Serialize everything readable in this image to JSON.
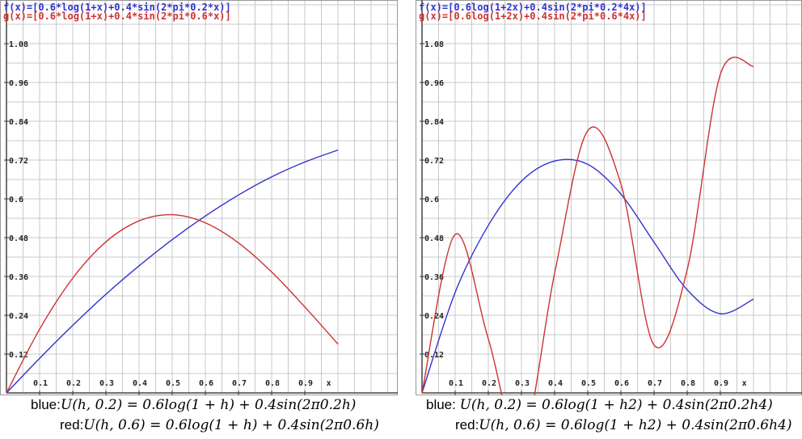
{
  "colors": {
    "blue": "#3333cc",
    "red": "#cc3333",
    "grid": "#c8c8c8",
    "axis": "#444444"
  },
  "chart_data": [
    {
      "type": "line",
      "title_lines": [
        "f(x)=[0.6*log(1+x)+0.4*sin(2*pi*0.2*x)]",
        "g(x)=[0.6*log(1+x)+0.4*sin(2*pi*0.6*x)]"
      ],
      "xlim": [
        0,
        1.0
      ],
      "ylim": [
        0,
        1.14
      ],
      "x_ticks": [
        "0.1",
        "0.2",
        "0.3",
        "0.4",
        "0.5",
        "0.6",
        "0.7",
        "0.8",
        "0.9"
      ],
      "y_ticks": [
        "1.08",
        "0.96",
        "0.84",
        "0.72",
        "0.6",
        "0.48",
        "0.36",
        "0.24",
        "0.12"
      ],
      "x_end_label": "x",
      "series": [
        {
          "color": "blue",
          "x": [
            0,
            0.1,
            0.2,
            0.3,
            0.4,
            0.5,
            0.6,
            0.7,
            0.8,
            0.9,
            1.0
          ],
          "y": [
            0,
            0.107,
            0.209,
            0.305,
            0.393,
            0.474,
            0.547,
            0.612,
            0.668,
            0.714,
            0.751
          ]
        },
        {
          "color": "red",
          "x": [
            0,
            0.1,
            0.2,
            0.3,
            0.4,
            0.5,
            0.6,
            0.7,
            0.8,
            0.9,
            1.0
          ],
          "y": [
            0,
            0.197,
            0.355,
            0.467,
            0.532,
            0.551,
            0.526,
            0.464,
            0.374,
            0.266,
            0.151
          ]
        }
      ],
      "caption": [
        {
          "label": "blue:",
          "formula": "U(h, 0.2) = 0.6log(1 + h) + 0.4sin(2π0.2h)"
        },
        {
          "label": "red:",
          "formula": "U(h, 0.6) = 0.6log(1 + h) + 0.4sin(2π0.6h)"
        }
      ]
    },
    {
      "type": "line",
      "title_lines": [
        "f(x)=[0.6log(1+2x)+0.4sin(2*pi*0.2*4x)]",
        "g(x)=[0.6log(1+2x)+0.4sin(2*pi*0.6*4x)]"
      ],
      "xlim": [
        0,
        1.0
      ],
      "ylim": [
        0,
        1.14
      ],
      "x_ticks": [
        "0.1",
        "0.2",
        "0.3",
        "0.4",
        "0.5",
        "0.6",
        "0.7",
        "0.8",
        "0.9"
      ],
      "y_ticks": [
        "1.08",
        "0.96",
        "0.84",
        "0.72",
        "0.6",
        "0.48",
        "0.36",
        "0.24",
        "0.12"
      ],
      "x_end_label": "x",
      "series": [
        {
          "color": "blue",
          "x": [
            0,
            0.1,
            0.2,
            0.3,
            0.4,
            0.5,
            0.6,
            0.7,
            0.8,
            0.9,
            1.0
          ],
          "y": [
            0,
            0.311,
            0.518,
            0.655,
            0.717,
            0.707,
            0.615,
            0.466,
            0.319,
            0.245,
            0.29
          ]
        },
        {
          "color": "red",
          "x": [
            0,
            0.1,
            0.2,
            0.3,
            0.4,
            0.5,
            0.6,
            0.7,
            0.8,
            0.9,
            1.0
          ],
          "y": [
            0,
            0.49,
            0.167,
            -0.157,
            0.37,
            0.811,
            0.646,
            0.148,
            0.381,
            0.985,
            1.01
          ]
        }
      ],
      "caption": [
        {
          "label": "blue: ",
          "formula": "U(h, 0.2) = 0.6log(1 + h2) + 0.4sin(2π0.2h4)"
        },
        {
          "label": "red:",
          "formula": "U(h, 0.6) =  0.6log(1 + h2) + 0.4sin(2π0.6h4)"
        }
      ]
    }
  ]
}
